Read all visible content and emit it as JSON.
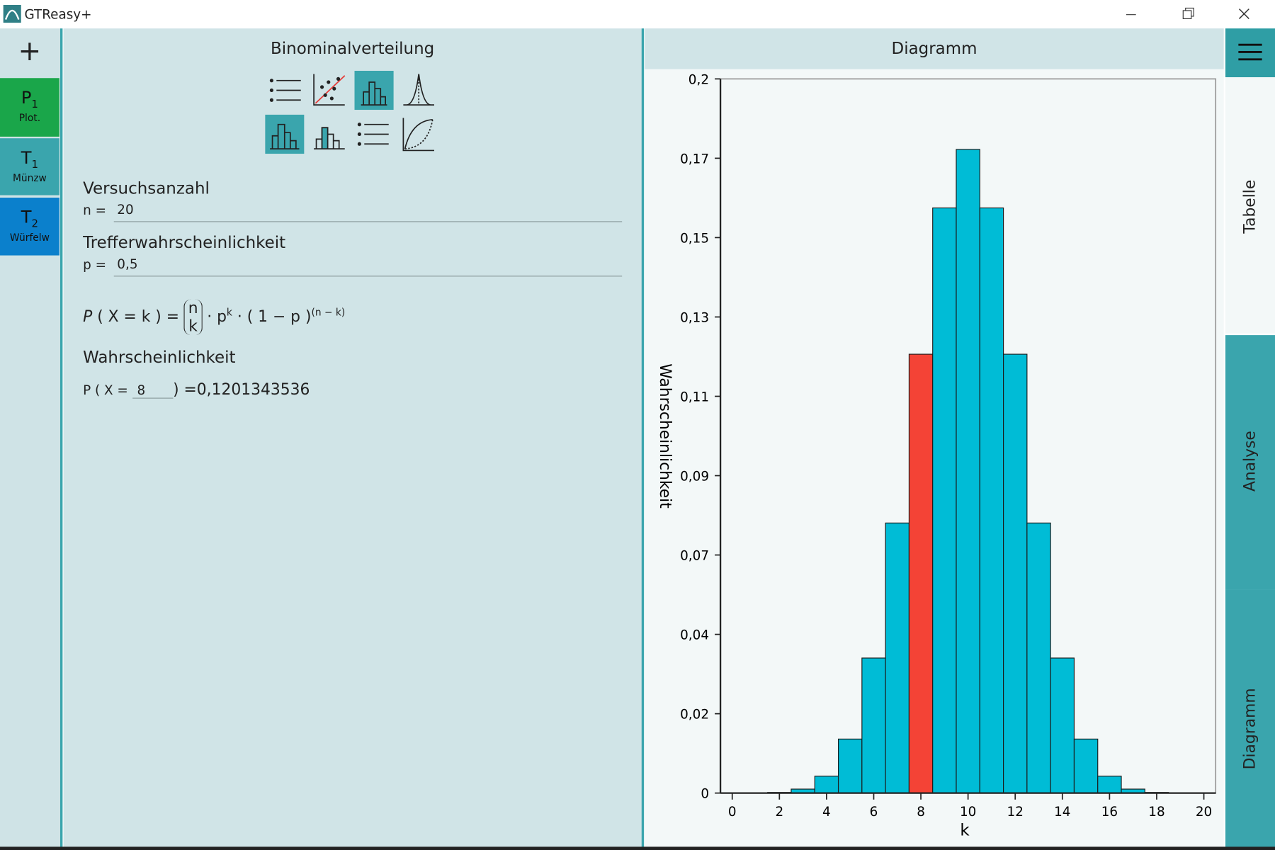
{
  "window": {
    "title": "GTReasy+"
  },
  "sidebar": {
    "add": "+",
    "tabs": [
      {
        "letter": "P",
        "index": "1",
        "caption": "Plot."
      },
      {
        "letter": "T",
        "index": "1",
        "caption": "Münzw"
      },
      {
        "letter": "T",
        "index": "2",
        "caption": "Würfelw"
      }
    ]
  },
  "calculator": {
    "title": "Binominalverteilung",
    "fields": [
      {
        "label": "Versuchsanzahl",
        "prefix": "n =",
        "value": "20"
      },
      {
        "label": "Trefferwahrscheinlichkeit",
        "prefix": "p =",
        "value": "0,5"
      }
    ],
    "formula": {
      "p": "P",
      "lhs": "( X = k ) =",
      "binom_top": "n",
      "binom_bottom": "k",
      "base": "· p",
      "exp": "k",
      "factor": "· ( 1 − p )",
      "factor_exp": "(n − k)"
    },
    "result": {
      "label": "Wahrscheinlichkeit",
      "prefix": "P ( X =",
      "k": "8",
      "suffix": ") =",
      "value": "0,1201343536"
    }
  },
  "diagram_header": "Diagramm",
  "right_tabs": [
    "Tabelle",
    "Analyse",
    "Diagramm"
  ],
  "chart_data": {
    "type": "bar",
    "x_label": "k",
    "y_label": "Wahrscheinlichkeit",
    "x": [
      0,
      1,
      2,
      3,
      4,
      5,
      6,
      7,
      8,
      9,
      10,
      11,
      12,
      13,
      14,
      15,
      16,
      17,
      18,
      19,
      20
    ],
    "values": [
      9.5e-07,
      1.9e-05,
      0.000181,
      0.001087,
      0.004621,
      0.014786,
      0.036964,
      0.073929,
      0.120134,
      0.160179,
      0.176197,
      0.160179,
      0.120134,
      0.073929,
      0.036964,
      0.014786,
      0.004621,
      0.001087,
      0.000181,
      1.9e-05,
      9.5e-07
    ],
    "color": "#00bcd6",
    "highlight": {
      "index": 8,
      "color": "#f44336"
    },
    "xlim": [
      -0.5,
      20.5
    ],
    "xticks": [
      0,
      2,
      4,
      6,
      8,
      10,
      12,
      14,
      16,
      18,
      20
    ],
    "ylim": [
      0,
      0.1955
    ],
    "yticks": [
      0,
      {
        "value": 0.02172,
        "label": "0,02"
      },
      {
        "value": 0.04344,
        "label": "0,04"
      },
      {
        "value": 0.06517,
        "label": "0,07"
      },
      {
        "value": 0.08689,
        "label": "0,09"
      },
      {
        "value": 0.10861,
        "label": "0,11"
      },
      {
        "value": 0.13033,
        "label": "0,13"
      },
      {
        "value": 0.15206,
        "label": "0,15"
      },
      {
        "value": 0.17378,
        "label": "0,17"
      },
      {
        "value": 0.1955,
        "label": "0,2"
      }
    ]
  }
}
